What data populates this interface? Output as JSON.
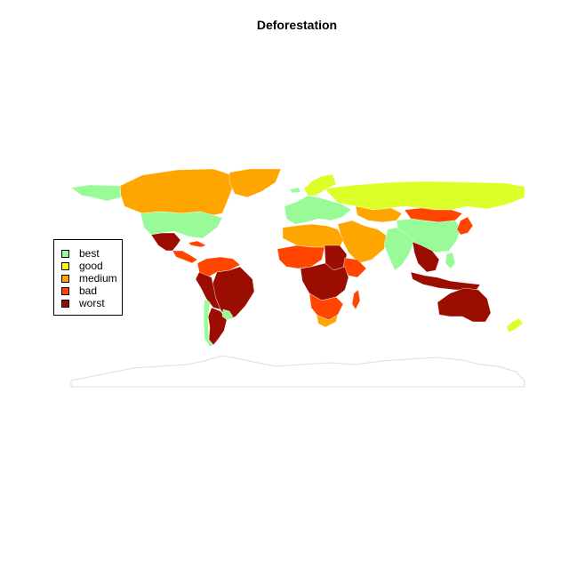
{
  "title": "Deforestation",
  "colors": {
    "best": "#98fb98",
    "good": "#ffff00",
    "medium": "#ffa500",
    "bad": "#ff4500",
    "worst": "#9b0d00",
    "fringe": "#dcff2a",
    "antarctica_outline": "#dddddd"
  },
  "legend": [
    {
      "key": "best",
      "label": "best",
      "color": "#98fb98"
    },
    {
      "key": "good",
      "label": "good",
      "color": "#ffff00"
    },
    {
      "key": "medium",
      "label": "medium",
      "color": "#ffa500"
    },
    {
      "key": "bad",
      "label": "bad",
      "color": "#ff4500"
    },
    {
      "key": "worst",
      "label": "worst",
      "color": "#9b0d00"
    }
  ],
  "regions": [
    {
      "name": "canada",
      "class": "medium"
    },
    {
      "name": "greenland",
      "class": "medium"
    },
    {
      "name": "alaska",
      "class": "best"
    },
    {
      "name": "usa",
      "class": "best"
    },
    {
      "name": "mexico",
      "class": "worst"
    },
    {
      "name": "central-america",
      "class": "bad"
    },
    {
      "name": "cuba",
      "class": "bad"
    },
    {
      "name": "colombia-venezuela",
      "class": "bad"
    },
    {
      "name": "brazil",
      "class": "worst"
    },
    {
      "name": "peru-bolivia",
      "class": "worst"
    },
    {
      "name": "argentina",
      "class": "worst"
    },
    {
      "name": "chile",
      "class": "best"
    },
    {
      "name": "paraguay-uruguay",
      "class": "best"
    },
    {
      "name": "russia",
      "class": "fringe"
    },
    {
      "name": "scandinavia",
      "class": "fringe"
    },
    {
      "name": "europe",
      "class": "best"
    },
    {
      "name": "iceland",
      "class": "best"
    },
    {
      "name": "china",
      "class": "best"
    },
    {
      "name": "india",
      "class": "best"
    },
    {
      "name": "mongolia",
      "class": "bad"
    },
    {
      "name": "kazakhstan",
      "class": "medium"
    },
    {
      "name": "middle-east",
      "class": "medium"
    },
    {
      "name": "north-africa",
      "class": "medium"
    },
    {
      "name": "west-africa",
      "class": "bad"
    },
    {
      "name": "sudan",
      "class": "worst"
    },
    {
      "name": "ethiopia",
      "class": "bad"
    },
    {
      "name": "central-africa",
      "class": "worst"
    },
    {
      "name": "southern-africa",
      "class": "bad"
    },
    {
      "name": "south-africa",
      "class": "medium"
    },
    {
      "name": "madagascar",
      "class": "bad"
    },
    {
      "name": "southeast-asia",
      "class": "worst"
    },
    {
      "name": "indonesia",
      "class": "worst"
    },
    {
      "name": "philippines",
      "class": "best"
    },
    {
      "name": "japan",
      "class": "bad"
    },
    {
      "name": "australia",
      "class": "worst"
    },
    {
      "name": "new-zealand",
      "class": "fringe"
    },
    {
      "name": "antarctica",
      "class": "antarctica_outline"
    }
  ]
}
